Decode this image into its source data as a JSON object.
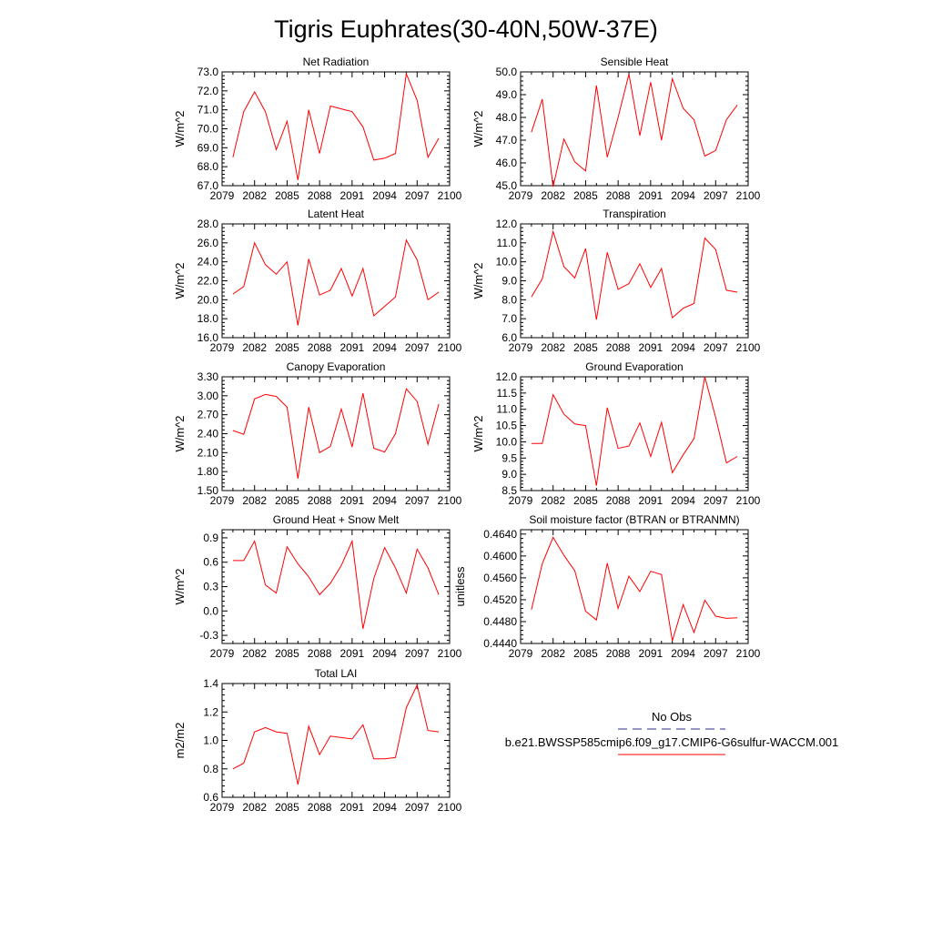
{
  "page": {
    "title": "Tigris Euphrates(30-40N,50W-37E)"
  },
  "legend": {
    "entries": [
      {
        "label": "No Obs",
        "color": "#2b2b8c",
        "style": "dashed"
      },
      {
        "label": "b.e21.BWSSP585cmip6.f09_g17.CMIP6-G6sulfur-WACCM.001",
        "color": "#ff0000",
        "style": "solid"
      }
    ]
  },
  "chart_data": [
    {
      "type": "line",
      "title": "Net Radiation",
      "ylabel": "W/m^2",
      "xlim": [
        2079,
        2100
      ],
      "ylim": [
        67.0,
        73.0
      ],
      "xticks": [
        2079,
        2082,
        2085,
        2088,
        2091,
        2094,
        2097,
        2100
      ],
      "yticks": [
        "67.0",
        "68.0",
        "69.0",
        "70.0",
        "71.0",
        "72.0",
        "73.0"
      ],
      "series": [
        {
          "color": "#ff0000",
          "x": [
            2080,
            2081,
            2082,
            2083,
            2084,
            2085,
            2086,
            2087,
            2088,
            2089,
            2090,
            2091,
            2092,
            2093,
            2094,
            2095,
            2096,
            2097,
            2098,
            2099
          ],
          "values": [
            68.5,
            70.9,
            71.95,
            70.9,
            68.9,
            70.4,
            67.3,
            71.0,
            68.7,
            71.2,
            71.05,
            70.9,
            70.1,
            68.35,
            68.45,
            68.7,
            72.9,
            71.5,
            68.5,
            69.5
          ]
        }
      ]
    },
    {
      "type": "line",
      "title": "Sensible Heat",
      "ylabel": "W/m^2",
      "xlim": [
        2079,
        2100
      ],
      "ylim": [
        45.0,
        50.0
      ],
      "xticks": [
        2079,
        2082,
        2085,
        2088,
        2091,
        2094,
        2097,
        2100
      ],
      "yticks": [
        "45.0",
        "46.0",
        "47.0",
        "48.0",
        "49.0",
        "50.0"
      ],
      "series": [
        {
          "color": "#ff0000",
          "x": [
            2080,
            2081,
            2082,
            2083,
            2084,
            2085,
            2086,
            2087,
            2088,
            2089,
            2090,
            2091,
            2092,
            2093,
            2094,
            2095,
            2096,
            2097,
            2098,
            2099
          ],
          "values": [
            47.35,
            48.8,
            44.95,
            47.05,
            46.05,
            45.65,
            49.4,
            46.25,
            48.0,
            49.9,
            47.2,
            49.55,
            47.0,
            49.7,
            48.4,
            47.9,
            46.3,
            46.55,
            47.9,
            48.55
          ]
        }
      ]
    },
    {
      "type": "line",
      "title": "Latent Heat",
      "ylabel": "W/m^2",
      "xlim": [
        2079,
        2100
      ],
      "ylim": [
        16.0,
        28.0
      ],
      "xticks": [
        2079,
        2082,
        2085,
        2088,
        2091,
        2094,
        2097,
        2100
      ],
      "yticks": [
        "16.0",
        "18.0",
        "20.0",
        "22.0",
        "24.0",
        "26.0",
        "28.0"
      ],
      "series": [
        {
          "color": "#ff0000",
          "x": [
            2080,
            2081,
            2082,
            2083,
            2084,
            2085,
            2086,
            2087,
            2088,
            2089,
            2090,
            2091,
            2092,
            2093,
            2094,
            2095,
            2096,
            2097,
            2098,
            2099
          ],
          "values": [
            20.6,
            21.4,
            26.0,
            23.7,
            22.7,
            24.0,
            17.3,
            24.3,
            20.5,
            21.0,
            23.3,
            20.4,
            23.3,
            18.3,
            19.3,
            20.3,
            26.3,
            24.2,
            20.0,
            20.8
          ]
        }
      ]
    },
    {
      "type": "line",
      "title": "Transpiration",
      "ylabel": "W/m^2",
      "xlim": [
        2079,
        2100
      ],
      "ylim": [
        6.0,
        12.0
      ],
      "xticks": [
        2079,
        2082,
        2085,
        2088,
        2091,
        2094,
        2097,
        2100
      ],
      "yticks": [
        "6.0",
        "7.0",
        "8.0",
        "9.0",
        "10.0",
        "11.0",
        "12.0"
      ],
      "series": [
        {
          "color": "#ff0000",
          "x": [
            2080,
            2081,
            2082,
            2083,
            2084,
            2085,
            2086,
            2087,
            2088,
            2089,
            2090,
            2091,
            2092,
            2093,
            2094,
            2095,
            2096,
            2097,
            2098,
            2099
          ],
          "values": [
            8.15,
            9.1,
            11.6,
            9.75,
            9.15,
            10.7,
            6.95,
            10.5,
            8.55,
            8.85,
            9.9,
            8.65,
            9.65,
            7.05,
            7.55,
            7.8,
            11.25,
            10.65,
            8.5,
            8.4
          ]
        }
      ]
    },
    {
      "type": "line",
      "title": "Canopy Evaporation",
      "ylabel": "W/m^2",
      "xlim": [
        2079,
        2100
      ],
      "ylim": [
        1.5,
        3.3
      ],
      "xticks": [
        2079,
        2082,
        2085,
        2088,
        2091,
        2094,
        2097,
        2100
      ],
      "yticks": [
        "1.50",
        "1.80",
        "2.10",
        "2.40",
        "2.70",
        "3.00",
        "3.30"
      ],
      "series": [
        {
          "color": "#ff0000",
          "x": [
            2080,
            2081,
            2082,
            2083,
            2084,
            2085,
            2086,
            2087,
            2088,
            2089,
            2090,
            2091,
            2092,
            2093,
            2094,
            2095,
            2096,
            2097,
            2098,
            2099
          ],
          "values": [
            2.45,
            2.39,
            2.95,
            3.02,
            2.99,
            2.82,
            1.69,
            2.82,
            2.1,
            2.2,
            2.79,
            2.19,
            3.04,
            2.17,
            2.11,
            2.4,
            3.11,
            2.91,
            2.23,
            2.87
          ]
        }
      ]
    },
    {
      "type": "line",
      "title": "Ground Evaporation",
      "ylabel": "W/m^2",
      "xlim": [
        2079,
        2100
      ],
      "ylim": [
        8.5,
        12.0
      ],
      "xticks": [
        2079,
        2082,
        2085,
        2088,
        2091,
        2094,
        2097,
        2100
      ],
      "yticks": [
        "8.5",
        "9.0",
        "9.5",
        "10.0",
        "10.5",
        "11.0",
        "11.5",
        "12.0"
      ],
      "series": [
        {
          "color": "#ff0000",
          "x": [
            2080,
            2081,
            2082,
            2083,
            2084,
            2085,
            2086,
            2087,
            2088,
            2089,
            2090,
            2091,
            2092,
            2093,
            2094,
            2095,
            2096,
            2097,
            2098,
            2099
          ],
          "values": [
            9.95,
            9.95,
            11.45,
            10.85,
            10.55,
            10.5,
            8.65,
            11.05,
            9.8,
            9.87,
            10.58,
            9.55,
            10.6,
            9.05,
            9.6,
            10.1,
            12.0,
            10.75,
            9.35,
            9.55
          ]
        }
      ]
    },
    {
      "type": "line",
      "title": "Ground Heat + Snow Melt",
      "ylabel": "W/m^2",
      "xlim": [
        2079,
        2100
      ],
      "ylim": [
        -0.4,
        1.0
      ],
      "xticks": [
        2079,
        2082,
        2085,
        2088,
        2091,
        2094,
        2097,
        2100
      ],
      "yticks": [
        "-0.3",
        "0.0",
        "0.3",
        "0.6",
        "0.9"
      ],
      "series": [
        {
          "color": "#ff0000",
          "x": [
            2080,
            2081,
            2082,
            2083,
            2084,
            2085,
            2086,
            2087,
            2088,
            2089,
            2090,
            2091,
            2092,
            2093,
            2094,
            2095,
            2096,
            2097,
            2098,
            2099
          ],
          "values": [
            0.62,
            0.62,
            0.86,
            0.32,
            0.22,
            0.79,
            0.58,
            0.42,
            0.2,
            0.34,
            0.56,
            0.86,
            -0.22,
            0.4,
            0.78,
            0.53,
            0.22,
            0.76,
            0.53,
            0.2
          ]
        }
      ]
    },
    {
      "type": "line",
      "title": "Soil moisture factor (BTRAN or BTRANMN)",
      "ylabel": "unitless",
      "xlim": [
        2079,
        2100
      ],
      "ylim": [
        0.444,
        0.4648
      ],
      "xticks": [
        2079,
        2082,
        2085,
        2088,
        2091,
        2094,
        2097,
        2100
      ],
      "yticks": [
        "0.4440",
        "0.4480",
        "0.4520",
        "0.4560",
        "0.4600",
        "0.4640"
      ],
      "series": [
        {
          "color": "#ff0000",
          "x": [
            2080,
            2081,
            2082,
            2083,
            2084,
            2085,
            2086,
            2087,
            2088,
            2089,
            2090,
            2091,
            2092,
            2093,
            2094,
            2095,
            2096,
            2097,
            2098,
            2099
          ],
          "values": [
            0.4502,
            0.4586,
            0.4634,
            0.4601,
            0.4573,
            0.4499,
            0.4483,
            0.4587,
            0.4504,
            0.4563,
            0.4535,
            0.4572,
            0.4566,
            0.4445,
            0.4511,
            0.446,
            0.4519,
            0.449,
            0.4486,
            0.4487
          ]
        }
      ]
    },
    {
      "type": "line",
      "title": "Total LAI",
      "ylabel": "m2/m2",
      "xlim": [
        2079,
        2100
      ],
      "ylim": [
        0.6,
        1.4
      ],
      "xticks": [
        2079,
        2082,
        2085,
        2088,
        2091,
        2094,
        2097,
        2100
      ],
      "yticks": [
        "0.6",
        "0.8",
        "1.0",
        "1.2",
        "1.4"
      ],
      "series": [
        {
          "color": "#ff0000",
          "x": [
            2080,
            2081,
            2082,
            2083,
            2084,
            2085,
            2086,
            2087,
            2088,
            2089,
            2090,
            2091,
            2092,
            2093,
            2094,
            2095,
            2096,
            2097,
            2098,
            2099
          ],
          "values": [
            0.8,
            0.84,
            1.06,
            1.09,
            1.06,
            1.05,
            0.69,
            1.1,
            0.9,
            1.03,
            1.02,
            1.01,
            1.11,
            0.87,
            0.87,
            0.88,
            1.23,
            1.39,
            1.07,
            1.06
          ]
        }
      ]
    }
  ]
}
